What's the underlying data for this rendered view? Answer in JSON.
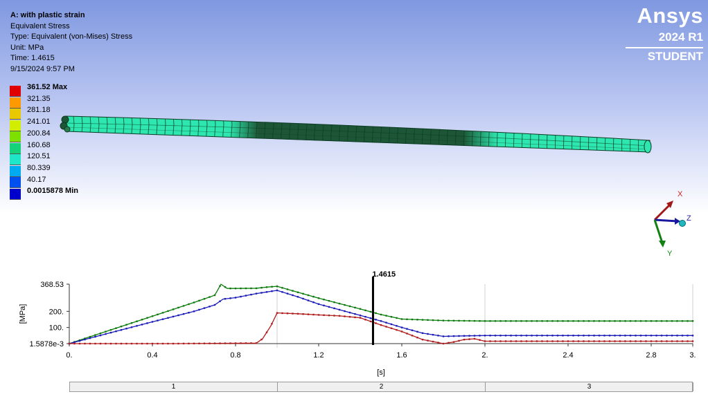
{
  "info": {
    "title": "A: with plastic strain",
    "result": "Equivalent Stress",
    "type": "Type: Equivalent (von-Mises) Stress",
    "unit": "Unit: MPa",
    "time": "Time: 1.4615",
    "date": "9/15/2024 9:57 PM"
  },
  "legend": {
    "labels": [
      "361.52 Max",
      "321.35",
      "281.18",
      "241.01",
      "200.84",
      "160.68",
      "120.51",
      "80.339",
      "40.17",
      "0.0015878 Min"
    ],
    "colors": [
      "#e00000",
      "#ff9900",
      "#e8c800",
      "#d2ee00",
      "#7ee000",
      "#14d27a",
      "#1ee6c8",
      "#00aaf0",
      "#0050f0",
      "#0000cc"
    ]
  },
  "logo": {
    "name": "Ansys",
    "version": "2024 R1",
    "edition": "STUDENT"
  },
  "triad": {
    "x": "X",
    "y": "Y",
    "z": "Z"
  },
  "model": {
    "color": "#2ee7b0",
    "dark_color": "#1d5636"
  },
  "graph": {
    "cursor_label": "1.4615",
    "y_axis_label": "[MPa]",
    "x_axis_label": "[s]",
    "y_tick_labels": [
      "368.53",
      "200.",
      "100.",
      "1.5878e-3"
    ],
    "x_tick_labels": [
      "0.",
      "0.4",
      "0.8",
      "1.2",
      "1.6",
      "2.",
      "2.4",
      "2.8",
      "3."
    ],
    "steps": [
      "1",
      "2",
      "3"
    ]
  },
  "chart_data": {
    "type": "line",
    "xlabel": "[s]",
    "ylabel": "[MPa]",
    "xlim": [
      0,
      3
    ],
    "ylim": [
      0.0015878,
      368.53
    ],
    "cursor_x": 1.4615,
    "series": [
      {
        "color": "#0a7a0a",
        "x": [
          0,
          0.2,
          0.4,
          0.6,
          0.7,
          0.73,
          0.76,
          0.8,
          0.9,
          0.95,
          1.0,
          1.1,
          1.2,
          1.3,
          1.4,
          1.5,
          1.6,
          1.8,
          2.0,
          2.5,
          3.0
        ],
        "y": [
          0,
          85,
          170,
          255,
          300,
          368,
          342,
          342,
          343,
          350,
          355,
          318,
          282,
          248,
          215,
          180,
          152,
          143,
          140,
          140,
          140
        ]
      },
      {
        "color": "#1a1ab8",
        "x": [
          0,
          0.2,
          0.4,
          0.6,
          0.7,
          0.74,
          0.8,
          0.9,
          1.0,
          1.1,
          1.2,
          1.3,
          1.4,
          1.5,
          1.6,
          1.7,
          1.8,
          1.9,
          2.0,
          2.5,
          3.0
        ],
        "y": [
          0,
          68,
          135,
          200,
          240,
          276,
          285,
          310,
          330,
          290,
          245,
          210,
          175,
          140,
          100,
          65,
          45,
          48,
          50,
          50,
          50
        ]
      },
      {
        "color": "#b01a1a",
        "x": [
          0,
          0.5,
          0.9,
          0.93,
          0.97,
          1.0,
          1.1,
          1.2,
          1.3,
          1.4,
          1.5,
          1.6,
          1.7,
          1.8,
          1.85,
          1.9,
          1.95,
          2.0,
          2.5,
          3.0
        ],
        "y": [
          0,
          0,
          3,
          30,
          110,
          190,
          185,
          178,
          172,
          160,
          115,
          75,
          25,
          0,
          10,
          25,
          30,
          15,
          15,
          15
        ]
      }
    ]
  }
}
